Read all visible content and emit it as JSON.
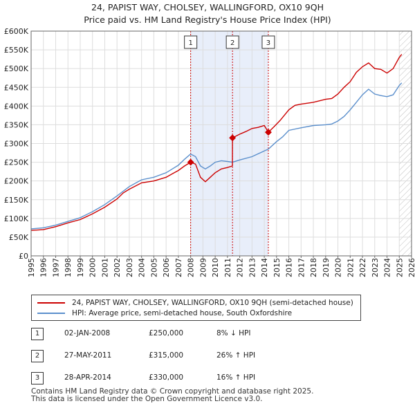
{
  "title_line1": "24, PAPIST WAY, CHOLSEY, WALLINGFORD, OX10 9QH",
  "title_line2": "Price paid vs. HM Land Registry's House Price Index (HPI)",
  "chart_data": {
    "type": "line",
    "xlim": [
      1995,
      2026
    ],
    "ylim": [
      0,
      600000
    ],
    "x_ticks": [
      1995,
      1996,
      1997,
      1998,
      1999,
      2000,
      2001,
      2002,
      2003,
      2004,
      2005,
      2006,
      2007,
      2008,
      2009,
      2010,
      2011,
      2012,
      2013,
      2014,
      2015,
      2016,
      2017,
      2018,
      2019,
      2020,
      2021,
      2022,
      2023,
      2024,
      2025,
      2026
    ],
    "y_ticks": [
      {
        "value": 0,
        "label": "£0"
      },
      {
        "value": 50000,
        "label": "£50K"
      },
      {
        "value": 100000,
        "label": "£100K"
      },
      {
        "value": 150000,
        "label": "£150K"
      },
      {
        "value": 200000,
        "label": "£200K"
      },
      {
        "value": 250000,
        "label": "£250K"
      },
      {
        "value": 300000,
        "label": "£300K"
      },
      {
        "value": 350000,
        "label": "£350K"
      },
      {
        "value": 400000,
        "label": "£400K"
      },
      {
        "value": 450000,
        "label": "£450K"
      },
      {
        "value": 500000,
        "label": "£500K"
      },
      {
        "value": 550000,
        "label": "£550K"
      },
      {
        "value": 600000,
        "label": "£600K"
      }
    ],
    "grid": true,
    "shaded_ranges": [
      [
        2008.0,
        2014.33
      ]
    ],
    "future_hatch_from": 2025.0,
    "series": [
      {
        "name": "24, PAPIST WAY, CHOLSEY, WALLINGFORD, OX10 9QH (semi-detached house)",
        "color": "#cc0000",
        "points": [
          [
            1995.0,
            68000
          ],
          [
            1996.0,
            70000
          ],
          [
            1997.0,
            78000
          ],
          [
            1998.0,
            88000
          ],
          [
            1999.0,
            97000
          ],
          [
            2000.0,
            112000
          ],
          [
            2001.0,
            130000
          ],
          [
            2002.0,
            152000
          ],
          [
            2002.5,
            168000
          ],
          [
            2003.0,
            178000
          ],
          [
            2004.0,
            195000
          ],
          [
            2005.0,
            200000
          ],
          [
            2006.0,
            210000
          ],
          [
            2007.0,
            228000
          ],
          [
            2007.5,
            240000
          ],
          [
            2008.0,
            250000
          ],
          [
            2008.4,
            245000
          ],
          [
            2008.8,
            210000
          ],
          [
            2009.2,
            198000
          ],
          [
            2009.6,
            210000
          ],
          [
            2010.0,
            222000
          ],
          [
            2010.5,
            232000
          ],
          [
            2011.0,
            236000
          ],
          [
            2011.4,
            240000
          ],
          [
            2011.41,
            315000
          ],
          [
            2012.0,
            325000
          ],
          [
            2012.5,
            332000
          ],
          [
            2013.0,
            340000
          ],
          [
            2013.5,
            343000
          ],
          [
            2014.0,
            348000
          ],
          [
            2014.33,
            330000
          ],
          [
            2014.8,
            345000
          ],
          [
            2015.3,
            362000
          ],
          [
            2016.0,
            390000
          ],
          [
            2016.5,
            402000
          ],
          [
            2017.0,
            405000
          ],
          [
            2018.0,
            410000
          ],
          [
            2019.0,
            418000
          ],
          [
            2019.5,
            420000
          ],
          [
            2020.0,
            432000
          ],
          [
            2020.5,
            450000
          ],
          [
            2021.0,
            465000
          ],
          [
            2021.5,
            490000
          ],
          [
            2022.0,
            505000
          ],
          [
            2022.5,
            515000
          ],
          [
            2023.0,
            500000
          ],
          [
            2023.5,
            498000
          ],
          [
            2024.0,
            488000
          ],
          [
            2024.5,
            500000
          ],
          [
            2025.0,
            530000
          ],
          [
            2025.2,
            538000
          ]
        ]
      },
      {
        "name": "HPI: Average price, semi-detached house, South Oxfordshire",
        "color": "#5b8fcc",
        "points": [
          [
            1995.0,
            72000
          ],
          [
            1996.0,
            75000
          ],
          [
            1997.0,
            82000
          ],
          [
            1998.0,
            92000
          ],
          [
            1999.0,
            102000
          ],
          [
            2000.0,
            118000
          ],
          [
            2001.0,
            137000
          ],
          [
            2002.0,
            160000
          ],
          [
            2003.0,
            185000
          ],
          [
            2004.0,
            203000
          ],
          [
            2005.0,
            210000
          ],
          [
            2006.0,
            222000
          ],
          [
            2007.0,
            242000
          ],
          [
            2007.5,
            258000
          ],
          [
            2008.0,
            272000
          ],
          [
            2008.4,
            265000
          ],
          [
            2008.8,
            240000
          ],
          [
            2009.2,
            232000
          ],
          [
            2009.6,
            240000
          ],
          [
            2010.0,
            250000
          ],
          [
            2010.5,
            254000
          ],
          [
            2011.0,
            252000
          ],
          [
            2011.41,
            250000
          ],
          [
            2012.0,
            256000
          ],
          [
            2013.0,
            265000
          ],
          [
            2014.0,
            280000
          ],
          [
            2014.33,
            285000
          ],
          [
            2015.0,
            305000
          ],
          [
            2015.5,
            318000
          ],
          [
            2016.0,
            335000
          ],
          [
            2017.0,
            342000
          ],
          [
            2018.0,
            348000
          ],
          [
            2019.0,
            350000
          ],
          [
            2019.5,
            352000
          ],
          [
            2020.0,
            360000
          ],
          [
            2020.5,
            372000
          ],
          [
            2021.0,
            390000
          ],
          [
            2021.5,
            410000
          ],
          [
            2022.0,
            430000
          ],
          [
            2022.5,
            445000
          ],
          [
            2023.0,
            432000
          ],
          [
            2023.5,
            428000
          ],
          [
            2024.0,
            425000
          ],
          [
            2024.5,
            430000
          ],
          [
            2025.0,
            455000
          ],
          [
            2025.2,
            462000
          ]
        ]
      }
    ],
    "sales": [
      {
        "label": "1",
        "x": 2008.0,
        "value": 250000
      },
      {
        "label": "2",
        "x": 2011.41,
        "value": 315000
      },
      {
        "label": "3",
        "x": 2014.33,
        "value": 330000
      }
    ]
  },
  "legend": {
    "items": [
      {
        "label": "24, PAPIST WAY, CHOLSEY, WALLINGFORD, OX10 9QH (semi-detached house)",
        "color": "#cc0000"
      },
      {
        "label": "HPI: Average price, semi-detached house, South Oxfordshire",
        "color": "#5b8fcc"
      }
    ]
  },
  "transactions": [
    {
      "num": "1",
      "date": "02-JAN-2008",
      "price": "£250,000",
      "hpi": "8% ↓ HPI"
    },
    {
      "num": "2",
      "date": "27-MAY-2011",
      "price": "£315,000",
      "hpi": "26% ↑ HPI"
    },
    {
      "num": "3",
      "date": "28-APR-2014",
      "price": "£330,000",
      "hpi": "16% ↑ HPI"
    }
  ],
  "footer": {
    "line1": "Contains HM Land Registry data © Crown copyright and database right 2025.",
    "line2": "This data is licensed under the Open Government Licence v3.0."
  }
}
